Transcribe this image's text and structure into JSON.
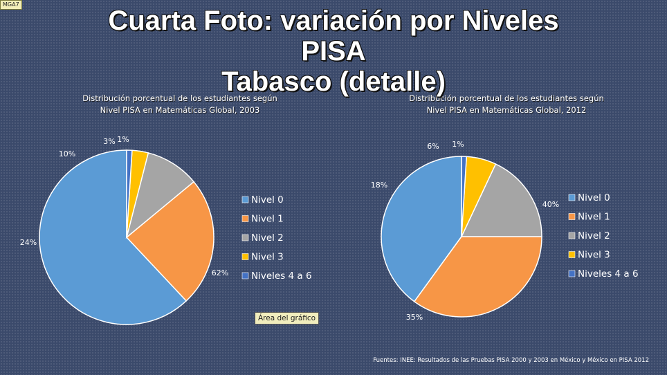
{
  "corner_tag": "MGA7",
  "slide": {
    "title_lines": [
      "Cuarta Foto: variación por Niveles",
      "PISA",
      "Tabasco (detalle)"
    ],
    "source": "Fuentes: INEE: Resultados de las Pruebas PISA 2000 y 2003 en México y México en PISA 2012",
    "tooltip": "Área del gráfico"
  },
  "colors": {
    "Nivel 0": "#5b9bd5",
    "Nivel 1": "#f79646",
    "Nivel 2": "#a5a5a5",
    "Nivel 3": "#ffc000",
    "Niveles 4 a 6": "#4472c4"
  },
  "chart_data": [
    {
      "type": "pie",
      "title": [
        "Distribución porcentual de los estudiantes según",
        "Nivel PISA en Matemáticas Global, 2003"
      ],
      "categories": [
        "Nivel 0",
        "Nivel 1",
        "Nivel 2",
        "Nivel 3",
        "Niveles 4 a 6"
      ],
      "values": [
        62,
        24,
        10,
        3,
        1
      ],
      "data_labels": [
        "62%",
        "24%",
        "10%",
        "3%",
        "1%"
      ],
      "legend": "right"
    },
    {
      "type": "pie",
      "title": [
        "Distribución porcentual de los estudiantes según",
        "Nivel PISA en Matemáticas Global, 2012"
      ],
      "categories": [
        "Nivel 0",
        "Nivel 1",
        "Nivel 2",
        "Nivel 3",
        "Niveles 4 a 6"
      ],
      "values": [
        40,
        35,
        18,
        6,
        1
      ],
      "data_labels": [
        "40%",
        "35%",
        "18%",
        "6%",
        "1%"
      ],
      "legend": "right"
    }
  ]
}
